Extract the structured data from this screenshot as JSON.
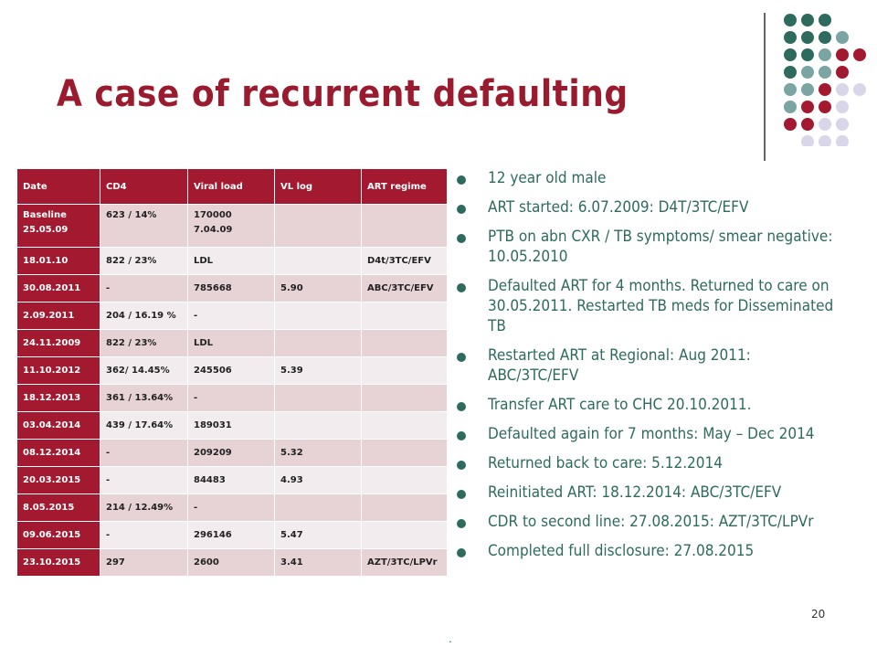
{
  "slide": {
    "title": "A case of recurrent defaulting",
    "page_number": "20",
    "trailing_mark": "."
  },
  "colors": {
    "teal": "#2e6b5e",
    "grey_teal": "#7aa5a3",
    "crimson": "#a3192f",
    "lavender": "#d8d6e8"
  },
  "decoration": {
    "dot_grid": [
      [
        "teal",
        "teal",
        "teal",
        "",
        ""
      ],
      [
        "teal",
        "teal",
        "teal",
        "grey_teal",
        ""
      ],
      [
        "teal",
        "teal",
        "grey_teal",
        "crimson",
        "crimson"
      ],
      [
        "teal",
        "grey_teal",
        "grey_teal",
        "crimson",
        ""
      ],
      [
        "grey_teal",
        "grey_teal",
        "crimson",
        "lavender",
        "lavender"
      ],
      [
        "grey_teal",
        "crimson",
        "crimson",
        "lavender",
        ""
      ],
      [
        "crimson",
        "crimson",
        "lavender",
        "lavender",
        ""
      ],
      [
        "",
        "lavender",
        "lavender",
        "lavender",
        ""
      ]
    ]
  },
  "table": {
    "headers": [
      "Date",
      "CD4",
      "Viral load",
      "VL log",
      "ART regime"
    ],
    "rows": [
      [
        "Baseline\n25.05.09",
        "623 / 14%",
        "170000\n7.04.09",
        "",
        ""
      ],
      [
        "18.01.10",
        "822 / 23%",
        "LDL",
        "",
        "D4t/3TC/EFV"
      ],
      [
        "30.08.2011",
        "-",
        "785668",
        "5.90",
        "ABC/3TC/EFV"
      ],
      [
        "2.09.2011",
        "204 / 16.19 %",
        "-",
        "",
        ""
      ],
      [
        "24.11.2009",
        "822 / 23%",
        "LDL",
        "",
        ""
      ],
      [
        "11.10.2012",
        "362/ 14.45%",
        "245506",
        "5.39",
        ""
      ],
      [
        "18.12.2013",
        "361 / 13.64%",
        "-",
        "",
        ""
      ],
      [
        "03.04.2014",
        "439 / 17.64%",
        "189031",
        "",
        ""
      ],
      [
        "08.12.2014",
        "-",
        "209209",
        "5.32",
        ""
      ],
      [
        "20.03.2015",
        "-",
        "84483",
        "4.93",
        ""
      ],
      [
        "8.05.2015",
        "214  / 12.49%",
        "-",
        "",
        ""
      ],
      [
        "09.06.2015",
        "-",
        "296146",
        "5.47",
        ""
      ],
      [
        "23.10.2015",
        "297",
        "2600",
        "3.41",
        "AZT/3TC/LPVr"
      ]
    ]
  },
  "bullets": [
    "12 year old male",
    "ART started: 6.07.2009: D4T/3TC/EFV",
    "PTB on abn CXR / TB symptoms/ smear negative: 10.05.2010",
    "Defaulted ART for 4 months. Returned to care on 30.05.2011. Restarted TB meds for Disseminated TB",
    "Restarted ART at Regional: Aug 2011: ABC/3TC/EFV",
    "Transfer ART care to CHC 20.10.2011.",
    "Defaulted again for 7 months: May – Dec 2014",
    "Returned back to care: 5.12.2014",
    "Reinitiated ART: 18.12.2014: ABC/3TC/EFV",
    "CDR to second line: 27.08.2015: AZT/3TC/LPVr",
    "Completed full disclosure: 27.08.2015"
  ]
}
